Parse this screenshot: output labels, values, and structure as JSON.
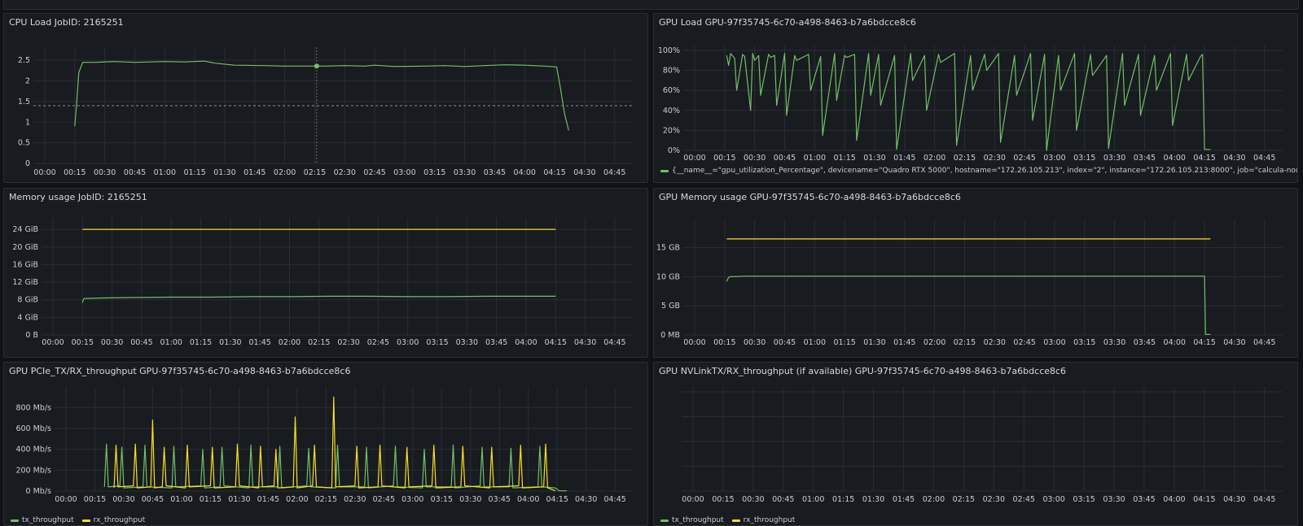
{
  "colors": {
    "green": "#73bf69",
    "yellow": "#fade2a",
    "grid": "#2a2d32",
    "text": "#ccccdc",
    "bg": "#181b1f"
  },
  "panels": {
    "cpu": {
      "title": "CPU Load JobID: 2165251"
    },
    "gpu_load": {
      "title": "GPU Load GPU-97f35745-6c70-a498-8463-b7a6bdcce8c6",
      "legend": "{__name__=\"gpu_utilization_Percentage\", devicename=\"Quadro RTX 5000\", hostname=\"172.26.105.213\", index=\"2\", instance=\"172.26.105.213:8000\", job=\"calcula-node-gpu-nvitop\", node"
    },
    "mem": {
      "title": "Memory usage JobID: 2165251"
    },
    "gpu_mem": {
      "title": "GPU Memory usage GPU-97f35745-6c70-a498-8463-b7a6bdcce8c6"
    },
    "pcie": {
      "title": "GPU PCIe_TX/RX_throughput GPU-97f35745-6c70-a498-8463-b7a6bdcce8c6",
      "legend": [
        "tx_throughput",
        "rx_throughput"
      ]
    },
    "nvlink": {
      "title": "GPU NVLinkTX/RX_throughput (if available) GPU-97f35745-6c70-a498-8463-b7a6bdcce8c6",
      "legend": [
        "tx_throughput",
        "rx_throughput"
      ]
    }
  },
  "chart_data": [
    {
      "id": "cpu",
      "type": "line",
      "title": "CPU Load JobID: 2165251",
      "x_ticks": [
        "00:00",
        "00:15",
        "00:30",
        "00:45",
        "01:00",
        "01:15",
        "01:30",
        "01:45",
        "02:00",
        "02:15",
        "02:30",
        "02:45",
        "03:00",
        "03:15",
        "03:30",
        "03:45",
        "04:00",
        "04:15",
        "04:30",
        "04:45"
      ],
      "x_range": [
        0,
        290
      ],
      "y_ticks": [
        "0",
        "0.5",
        "1",
        "1.5",
        "2",
        "2.5"
      ],
      "y_range": [
        0,
        2.7
      ],
      "threshold": 1.4,
      "series": [
        {
          "color": "green",
          "x": [
            15,
            16,
            17,
            19,
            25,
            35,
            45,
            60,
            70,
            80,
            85,
            95,
            110,
            120,
            130,
            140,
            150,
            160,
            165,
            175,
            190,
            200,
            210,
            220,
            230,
            240,
            250,
            256,
            258,
            260,
            262
          ],
          "y": [
            0.9,
            1.5,
            2.2,
            2.45,
            2.45,
            2.47,
            2.45,
            2.47,
            2.46,
            2.48,
            2.43,
            2.38,
            2.37,
            2.36,
            2.36,
            2.36,
            2.37,
            2.36,
            2.38,
            2.35,
            2.36,
            2.37,
            2.35,
            2.37,
            2.39,
            2.38,
            2.36,
            2.34,
            1.8,
            1.2,
            0.8
          ]
        }
      ]
    },
    {
      "id": "gpu_load",
      "type": "line",
      "title": "GPU Load GPU-97f35745-6c70-a498-8463-b7a6bdcce8c6",
      "x_ticks": [
        "00:00",
        "00:15",
        "00:30",
        "00:45",
        "01:00",
        "01:15",
        "01:30",
        "01:45",
        "02:00",
        "02:15",
        "02:30",
        "02:45",
        "03:00",
        "03:15",
        "03:30",
        "03:45",
        "04:00",
        "04:15",
        "04:30",
        "04:45"
      ],
      "x_range": [
        0,
        290
      ],
      "y_ticks": [
        "0%",
        "20%",
        "40%",
        "60%",
        "80%",
        "100%"
      ],
      "y_range": [
        0,
        100
      ],
      "series": [
        {
          "color": "green",
          "x": [
            16,
            17,
            18,
            20,
            21,
            24,
            25,
            28,
            29,
            30,
            32,
            33,
            37,
            38,
            40,
            41,
            45,
            46,
            50,
            51,
            57,
            58,
            63,
            64,
            70,
            71,
            75,
            76,
            80,
            81,
            87,
            88,
            92,
            93,
            100,
            101,
            108,
            109,
            115,
            116,
            122,
            123,
            130,
            131,
            138,
            139,
            145,
            146,
            152,
            153,
            160,
            161,
            168,
            169,
            175,
            176,
            182,
            183,
            190,
            191,
            198,
            199,
            206,
            207,
            214,
            215,
            222,
            223,
            230,
            231,
            238,
            239,
            246,
            247,
            253,
            254,
            255,
            258
          ],
          "y": [
            95,
            85,
            97,
            92,
            60,
            96,
            94,
            40,
            97,
            90,
            95,
            55,
            96,
            93,
            95,
            45,
            97,
            35,
            95,
            90,
            96,
            60,
            94,
            15,
            97,
            50,
            95,
            93,
            96,
            10,
            97,
            55,
            96,
            45,
            95,
            1,
            97,
            70,
            95,
            40,
            96,
            88,
            97,
            5,
            95,
            60,
            96,
            80,
            97,
            8,
            95,
            55,
            97,
            30,
            96,
            0,
            95,
            60,
            97,
            20,
            96,
            75,
            95,
            2,
            97,
            45,
            96,
            35,
            95,
            60,
            97,
            25,
            96,
            70,
            94,
            96,
            1,
            1
          ]
        }
      ]
    },
    {
      "id": "mem",
      "type": "line",
      "title": "Memory usage JobID: 2165251",
      "x_ticks": [
        "00:00",
        "00:15",
        "00:30",
        "00:45",
        "01:00",
        "01:15",
        "01:30",
        "01:45",
        "02:00",
        "02:15",
        "02:30",
        "02:45",
        "03:00",
        "03:15",
        "03:30",
        "03:45",
        "04:00",
        "04:15",
        "04:30",
        "04:45"
      ],
      "x_range": [
        0,
        290
      ],
      "y_ticks": [
        "0 B",
        "4 GiB",
        "8 GiB",
        "12 GiB",
        "16 GiB",
        "20 GiB",
        "24 GiB"
      ],
      "y_range": [
        0,
        25.5
      ],
      "series": [
        {
          "color": "yellow",
          "x": [
            15,
            255
          ],
          "y": [
            24,
            24
          ]
        },
        {
          "color": "green",
          "x": [
            15,
            15.5,
            16,
            25,
            40,
            60,
            80,
            100,
            120,
            140,
            160,
            180,
            200,
            220,
            240,
            255
          ],
          "y": [
            7.3,
            8.1,
            8.3,
            8.4,
            8.5,
            8.6,
            8.6,
            8.7,
            8.7,
            8.8,
            8.8,
            8.7,
            8.7,
            8.8,
            8.8,
            8.8
          ]
        }
      ]
    },
    {
      "id": "gpu_mem",
      "type": "line",
      "title": "GPU Memory usage GPU-97f35745-6c70-a498-8463-b7a6bdcce8c6",
      "x_ticks": [
        "00:00",
        "00:15",
        "00:30",
        "00:45",
        "01:00",
        "01:15",
        "01:30",
        "01:45",
        "02:00",
        "02:15",
        "02:30",
        "02:45",
        "03:00",
        "03:15",
        "03:30",
        "03:45",
        "04:00",
        "04:15",
        "04:30",
        "04:45"
      ],
      "x_range": [
        0,
        290
      ],
      "y_ticks": [
        "0 MB",
        "5 GB",
        "10 GB",
        "15 GB"
      ],
      "y_range": [
        0,
        19
      ],
      "series": [
        {
          "color": "yellow",
          "x": [
            16,
            258
          ],
          "y": [
            16.5,
            16.5
          ]
        },
        {
          "color": "green",
          "x": [
            16,
            17,
            18,
            25,
            40,
            100,
            200,
            255,
            255.5,
            258
          ],
          "y": [
            9.2,
            9.9,
            10.0,
            10.1,
            10.1,
            10.1,
            10.1,
            10.1,
            0.1,
            0.1
          ]
        }
      ]
    },
    {
      "id": "pcie",
      "type": "line",
      "title": "GPU PCIe_TX/RX_throughput GPU-97f35745-6c70-a498-8463-b7a6bdcce8c6",
      "x_ticks": [
        "00:00",
        "00:15",
        "00:30",
        "00:45",
        "01:00",
        "01:15",
        "01:30",
        "01:45",
        "02:00",
        "02:15",
        "02:30",
        "02:45",
        "03:00",
        "03:15",
        "03:30",
        "03:45",
        "04:00",
        "04:15",
        "04:30",
        "04:45"
      ],
      "x_range": [
        0,
        290
      ],
      "y_ticks": [
        "0 Mb/s",
        "200 Mb/s",
        "400 Mb/s",
        "600 Mb/s",
        "800 Mb/s"
      ],
      "y_range": [
        0,
        950
      ],
      "series": [
        {
          "name": "tx_throughput",
          "color": "green",
          "x": [
            20,
            21,
            22,
            28,
            29,
            30,
            40,
            41,
            42,
            55,
            56,
            57,
            70,
            71,
            72,
            80,
            81,
            82,
            95,
            96,
            97,
            110,
            111,
            112,
            125,
            126,
            127,
            140,
            141,
            142,
            155,
            156,
            157,
            170,
            171,
            172,
            185,
            186,
            187,
            200,
            201,
            202,
            215,
            216,
            217,
            230,
            231,
            232,
            245,
            246,
            247,
            254,
            256,
            260
          ],
          "y": [
            40,
            450,
            40,
            50,
            420,
            30,
            40,
            440,
            40,
            30,
            430,
            40,
            50,
            400,
            30,
            40,
            420,
            50,
            30,
            440,
            40,
            40,
            430,
            30,
            50,
            410,
            40,
            30,
            440,
            40,
            40,
            420,
            30,
            50,
            430,
            40,
            30,
            400,
            40,
            40,
            440,
            30,
            50,
            420,
            40,
            40,
            410,
            30,
            40,
            430,
            40,
            30,
            2,
            2
          ]
        },
        {
          "name": "rx_throughput",
          "color": "yellow",
          "x": [
            25,
            26,
            27,
            35,
            36,
            37,
            44,
            45,
            46,
            50,
            51,
            52,
            62,
            63,
            64,
            75,
            76,
            77,
            88,
            89,
            90,
            100,
            101,
            102,
            108,
            109,
            110,
            118,
            119,
            120,
            128,
            129,
            130,
            138,
            139,
            140,
            150,
            151,
            152,
            162,
            163,
            164,
            176,
            177,
            178,
            190,
            191,
            192,
            205,
            206,
            207,
            220,
            221,
            222,
            235,
            236,
            237,
            248,
            249,
            250,
            254
          ],
          "y": [
            30,
            440,
            40,
            50,
            450,
            30,
            40,
            680,
            30,
            40,
            420,
            50,
            30,
            440,
            40,
            50,
            420,
            30,
            40,
            450,
            50,
            30,
            430,
            40,
            50,
            400,
            30,
            40,
            710,
            30,
            50,
            440,
            40,
            30,
            900,
            40,
            50,
            430,
            30,
            40,
            440,
            50,
            30,
            420,
            40,
            50,
            440,
            30,
            40,
            430,
            50,
            30,
            420,
            40,
            50,
            440,
            30,
            40,
            450,
            30,
            2
          ]
        }
      ]
    },
    {
      "id": "nvlink",
      "type": "line",
      "title": "GPU NVLinkTX/RX_throughput (if available) GPU-97f35745-6c70-a498-8463-b7a6bdcce8c6",
      "x_ticks": [
        "00:00",
        "00:15",
        "00:30",
        "00:45",
        "01:00",
        "01:15",
        "01:30",
        "01:45",
        "02:00",
        "02:15",
        "02:30",
        "02:45",
        "03:00",
        "03:15",
        "03:30",
        "03:45",
        "04:00",
        "04:15",
        "04:30",
        "04:45"
      ],
      "x_range": [
        0,
        290
      ],
      "series": [
        {
          "name": "tx_throughput",
          "color": "green",
          "x": [],
          "y": []
        },
        {
          "name": "rx_throughput",
          "color": "yellow",
          "x": [],
          "y": []
        }
      ]
    }
  ]
}
